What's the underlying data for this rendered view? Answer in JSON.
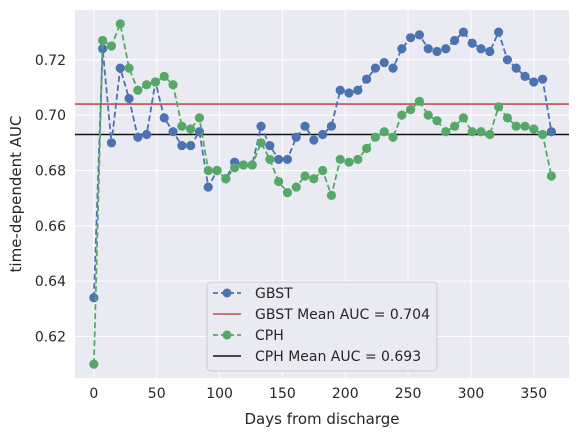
{
  "chart_data": {
    "type": "line",
    "xlabel": "Days from discharge",
    "ylabel": "time-dependent AUC",
    "xlim": [
      -15,
      378
    ],
    "ylim": [
      0.605,
      0.738
    ],
    "xticks": [
      0,
      50,
      100,
      150,
      200,
      250,
      300,
      350
    ],
    "yticks": [
      0.62,
      0.64,
      0.66,
      0.68,
      0.7,
      0.72
    ],
    "ytick_labels": [
      "0.62",
      "0.64",
      "0.66",
      "0.68",
      "0.70",
      "0.72"
    ],
    "grid": true,
    "legend_position": "lower center",
    "x": [
      0,
      7,
      14,
      21,
      28,
      35,
      42,
      49,
      56,
      63,
      70,
      77,
      84,
      91,
      98,
      105,
      112,
      119,
      126,
      133,
      140,
      147,
      154,
      161,
      168,
      175,
      182,
      189,
      196,
      203,
      210,
      217,
      224,
      231,
      238,
      245,
      252,
      259,
      266,
      273,
      280,
      287,
      294,
      301,
      308,
      315,
      322,
      329,
      336,
      343,
      350,
      357,
      364
    ],
    "series": [
      {
        "name": "GBST",
        "color": "#4c72b0",
        "style": "dashed-marker",
        "values": [
          0.634,
          0.724,
          0.69,
          0.717,
          0.706,
          0.692,
          0.693,
          0.712,
          0.699,
          0.694,
          0.689,
          0.689,
          0.694,
          0.674,
          0.68,
          0.677,
          0.683,
          0.682,
          0.682,
          0.696,
          0.689,
          0.684,
          0.684,
          0.692,
          0.696,
          0.691,
          0.693,
          0.696,
          0.709,
          0.708,
          0.709,
          0.713,
          0.717,
          0.719,
          0.717,
          0.724,
          0.728,
          0.729,
          0.724,
          0.723,
          0.724,
          0.727,
          0.73,
          0.726,
          0.724,
          0.723,
          0.73,
          0.72,
          0.717,
          0.714,
          0.712,
          0.713,
          0.694
        ]
      },
      {
        "name": "CPH",
        "color": "#55a868",
        "style": "dashed-marker",
        "values": [
          0.61,
          0.727,
          0.725,
          0.733,
          0.717,
          0.709,
          0.711,
          0.712,
          0.714,
          0.711,
          0.696,
          0.695,
          0.699,
          0.68,
          0.68,
          0.677,
          0.681,
          0.682,
          0.682,
          0.69,
          0.684,
          0.676,
          0.672,
          0.674,
          0.678,
          0.677,
          0.68,
          0.671,
          0.684,
          0.683,
          0.684,
          0.688,
          0.692,
          0.694,
          0.692,
          0.7,
          0.702,
          0.705,
          0.7,
          0.698,
          0.694,
          0.696,
          0.699,
          0.694,
          0.694,
          0.693,
          0.703,
          0.699,
          0.696,
          0.696,
          0.695,
          0.693,
          0.678
        ]
      }
    ],
    "reference_lines": [
      {
        "name": "GBST Mean AUC = 0.704",
        "value": 0.704,
        "color": "#c44e52"
      },
      {
        "name": "CPH Mean AUC = 0.693",
        "value": 0.693,
        "color": "#111111"
      }
    ]
  }
}
